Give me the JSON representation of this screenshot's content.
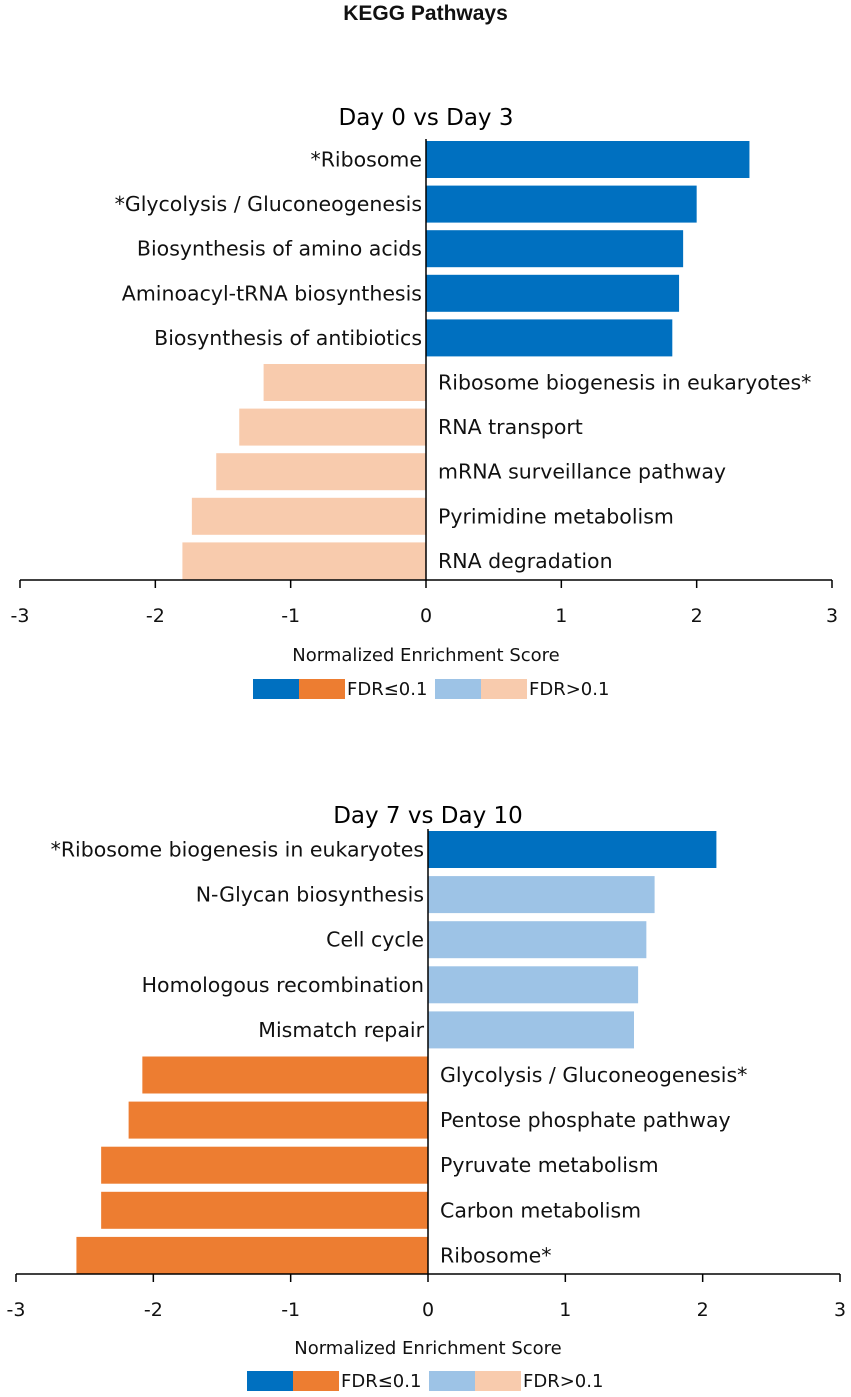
{
  "title": "KEGG Pathways",
  "colors": {
    "pos_sig": "#0070c0",
    "neg_sig": "#ed7d31",
    "pos_nonsig": "#9dc3e6",
    "neg_nonsig": "#f8cbad"
  },
  "chart_data": [
    {
      "type": "bar",
      "orientation": "horizontal",
      "title": "Day 0 vs Day 3",
      "xlabel": "Normalized Enrichment Score",
      "xlim": [
        -3,
        3
      ],
      "xticks": [
        "-3",
        "-2",
        "-1",
        "0",
        "1",
        "2",
        "3"
      ],
      "categories": [
        "*Ribosome",
        "*Glycolysis / Gluconeogenesis",
        "Biosynthesis of amino acids",
        "Aminoacyl-tRNA biosynthesis",
        "Biosynthesis of antibiotics",
        "Ribosome biogenesis in eukaryotes*",
        "RNA transport",
        "mRNA surveillance pathway",
        "Pyrimidine metabolism",
        "RNA degradation"
      ],
      "values": [
        2.39,
        2.0,
        1.9,
        1.87,
        1.82,
        -1.2,
        -1.38,
        -1.55,
        -1.73,
        -1.8
      ],
      "significant": [
        true,
        true,
        true,
        true,
        true,
        false,
        false,
        false,
        false,
        false
      ],
      "legend": {
        "sig_label": "FDR≤0.1",
        "nonsig_label": "FDR>0.1"
      }
    },
    {
      "type": "bar",
      "orientation": "horizontal",
      "title": "Day 7 vs Day 10",
      "xlabel": "Normalized Enrichment Score",
      "xlim": [
        -3,
        3
      ],
      "xticks": [
        "-3",
        "-2",
        "-1",
        "0",
        "1",
        "2",
        "3"
      ],
      "categories": [
        "*Ribosome biogenesis in eukaryotes",
        "N-Glycan biosynthesis",
        "Cell cycle",
        "Homologous recombination",
        "Mismatch repair",
        "Glycolysis / Gluconeogenesis*",
        "Pentose phosphate pathway",
        "Pyruvate metabolism",
        "Carbon metabolism",
        "Ribosome*"
      ],
      "values": [
        2.1,
        1.65,
        1.59,
        1.53,
        1.5,
        -2.08,
        -2.18,
        -2.38,
        -2.38,
        -2.56
      ],
      "significant": [
        true,
        false,
        false,
        false,
        false,
        true,
        true,
        true,
        true,
        true
      ],
      "legend": {
        "sig_label": "FDR≤0.1",
        "nonsig_label": "FDR>0.1"
      }
    }
  ]
}
